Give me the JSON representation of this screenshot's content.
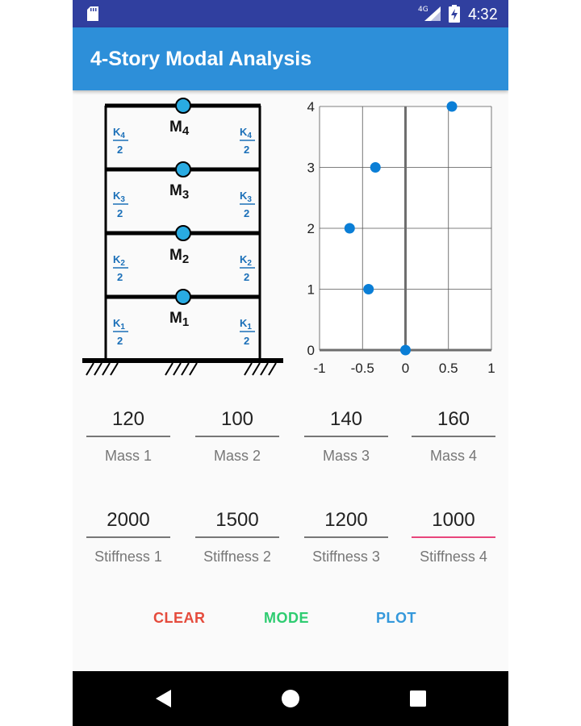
{
  "status_bar": {
    "network": "4G",
    "time": "4:32",
    "icons": [
      "sd-card-icon",
      "signal-icon",
      "battery-charging-icon"
    ]
  },
  "app_bar": {
    "title": "4-Story Modal Analysis"
  },
  "frame_diagram": {
    "stories": [
      {
        "mass": "M",
        "mass_sub": "4",
        "k": "K",
        "k_sub": "4",
        "k_den": "2"
      },
      {
        "mass": "M",
        "mass_sub": "3",
        "k": "K",
        "k_sub": "3",
        "k_den": "2"
      },
      {
        "mass": "M",
        "mass_sub": "2",
        "k": "K",
        "k_sub": "2",
        "k_den": "2"
      },
      {
        "mass": "M",
        "mass_sub": "1",
        "k": "K",
        "k_sub": "1",
        "k_den": "2"
      }
    ],
    "colors": {
      "frame": "#000000",
      "node": "#29abe2",
      "stiffness_label": "#1a6fb8"
    }
  },
  "chart_data": {
    "type": "scatter",
    "title": "",
    "xlabel": "",
    "ylabel": "",
    "xlim": [
      -1,
      1
    ],
    "ylim": [
      0,
      4
    ],
    "xticks": [
      -1,
      -0.5,
      0,
      0.5,
      1
    ],
    "x_tick_labels": [
      "-1",
      "-0.5",
      "0",
      "0.5",
      "1"
    ],
    "yticks": [
      0,
      1,
      2,
      3,
      4
    ],
    "y_tick_labels": [
      "0",
      "1",
      "2",
      "3",
      "4"
    ],
    "grid": true,
    "series": [
      {
        "points": [
          {
            "x": 0,
            "y": 0
          },
          {
            "x": -0.43,
            "y": 1
          },
          {
            "x": -0.65,
            "y": 2
          },
          {
            "x": -0.35,
            "y": 3
          },
          {
            "x": 0.54,
            "y": 4
          }
        ]
      }
    ],
    "marker_color": "#0a7ed6"
  },
  "masses": [
    {
      "value": "120",
      "label": "Mass 1"
    },
    {
      "value": "100",
      "label": "Mass 2"
    },
    {
      "value": "140",
      "label": "Mass 3"
    },
    {
      "value": "160",
      "label": "Mass 4"
    }
  ],
  "stiffnesses": [
    {
      "value": "2000",
      "label": "Stiffness 1"
    },
    {
      "value": "1500",
      "label": "Stiffness 2"
    },
    {
      "value": "1200",
      "label": "Stiffness 3"
    },
    {
      "value": "1000",
      "label": "Stiffness 4"
    }
  ],
  "buttons": {
    "clear": "CLEAR",
    "mode": "MODE",
    "plot": "PLOT",
    "colors": {
      "clear": "#e54b3c",
      "mode": "#2ecc71",
      "plot": "#3498db"
    }
  },
  "nav_bar": {
    "icons": [
      "back-icon",
      "home-icon",
      "recents-icon"
    ]
  }
}
